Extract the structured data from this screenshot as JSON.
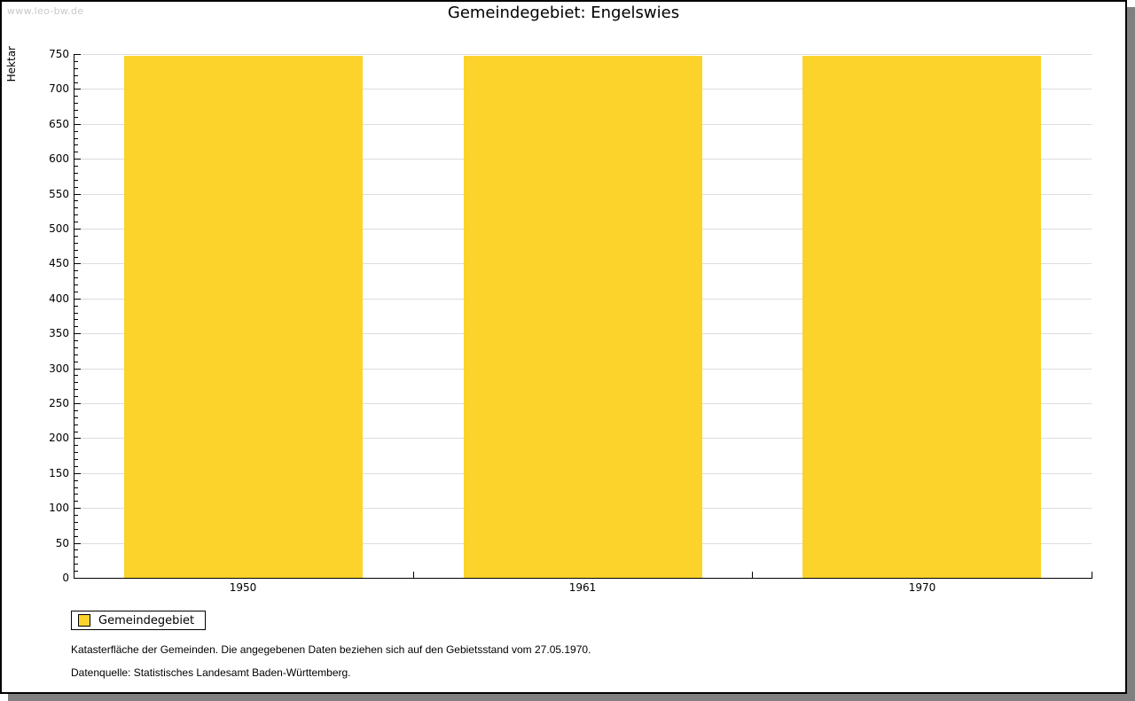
{
  "watermark": "www.leo-bw.de",
  "title": "Gemeindegebiet: Engelswies",
  "legend": {
    "items": [
      {
        "label": "Gemeindegebiet",
        "color": "#fcd32b"
      }
    ]
  },
  "footer": {
    "line1": "Katasterfläche der Gemeinden. Die angegebenen Daten beziehen sich auf den Gebietsstand vom 27.05.1970.",
    "line2": "Datenquelle: Statistisches Landesamt Baden-Württemberg."
  },
  "chart_data": {
    "type": "bar",
    "title": "Gemeindegebiet: Engelswies",
    "categories": [
      "1950",
      "1961",
      "1970"
    ],
    "series": [
      {
        "name": "Gemeindegebiet",
        "values": [
          748,
          748,
          748
        ],
        "color": "#fcd32b"
      }
    ],
    "xlabel": "",
    "ylabel": "Hektar",
    "ylim": [
      0,
      750
    ],
    "ytick_major": 50,
    "ytick_minor": 10,
    "grid": true,
    "legend_position": "bottom-left",
    "colors": {
      "grid": "#dcdcdc",
      "axis": "#000000"
    }
  }
}
